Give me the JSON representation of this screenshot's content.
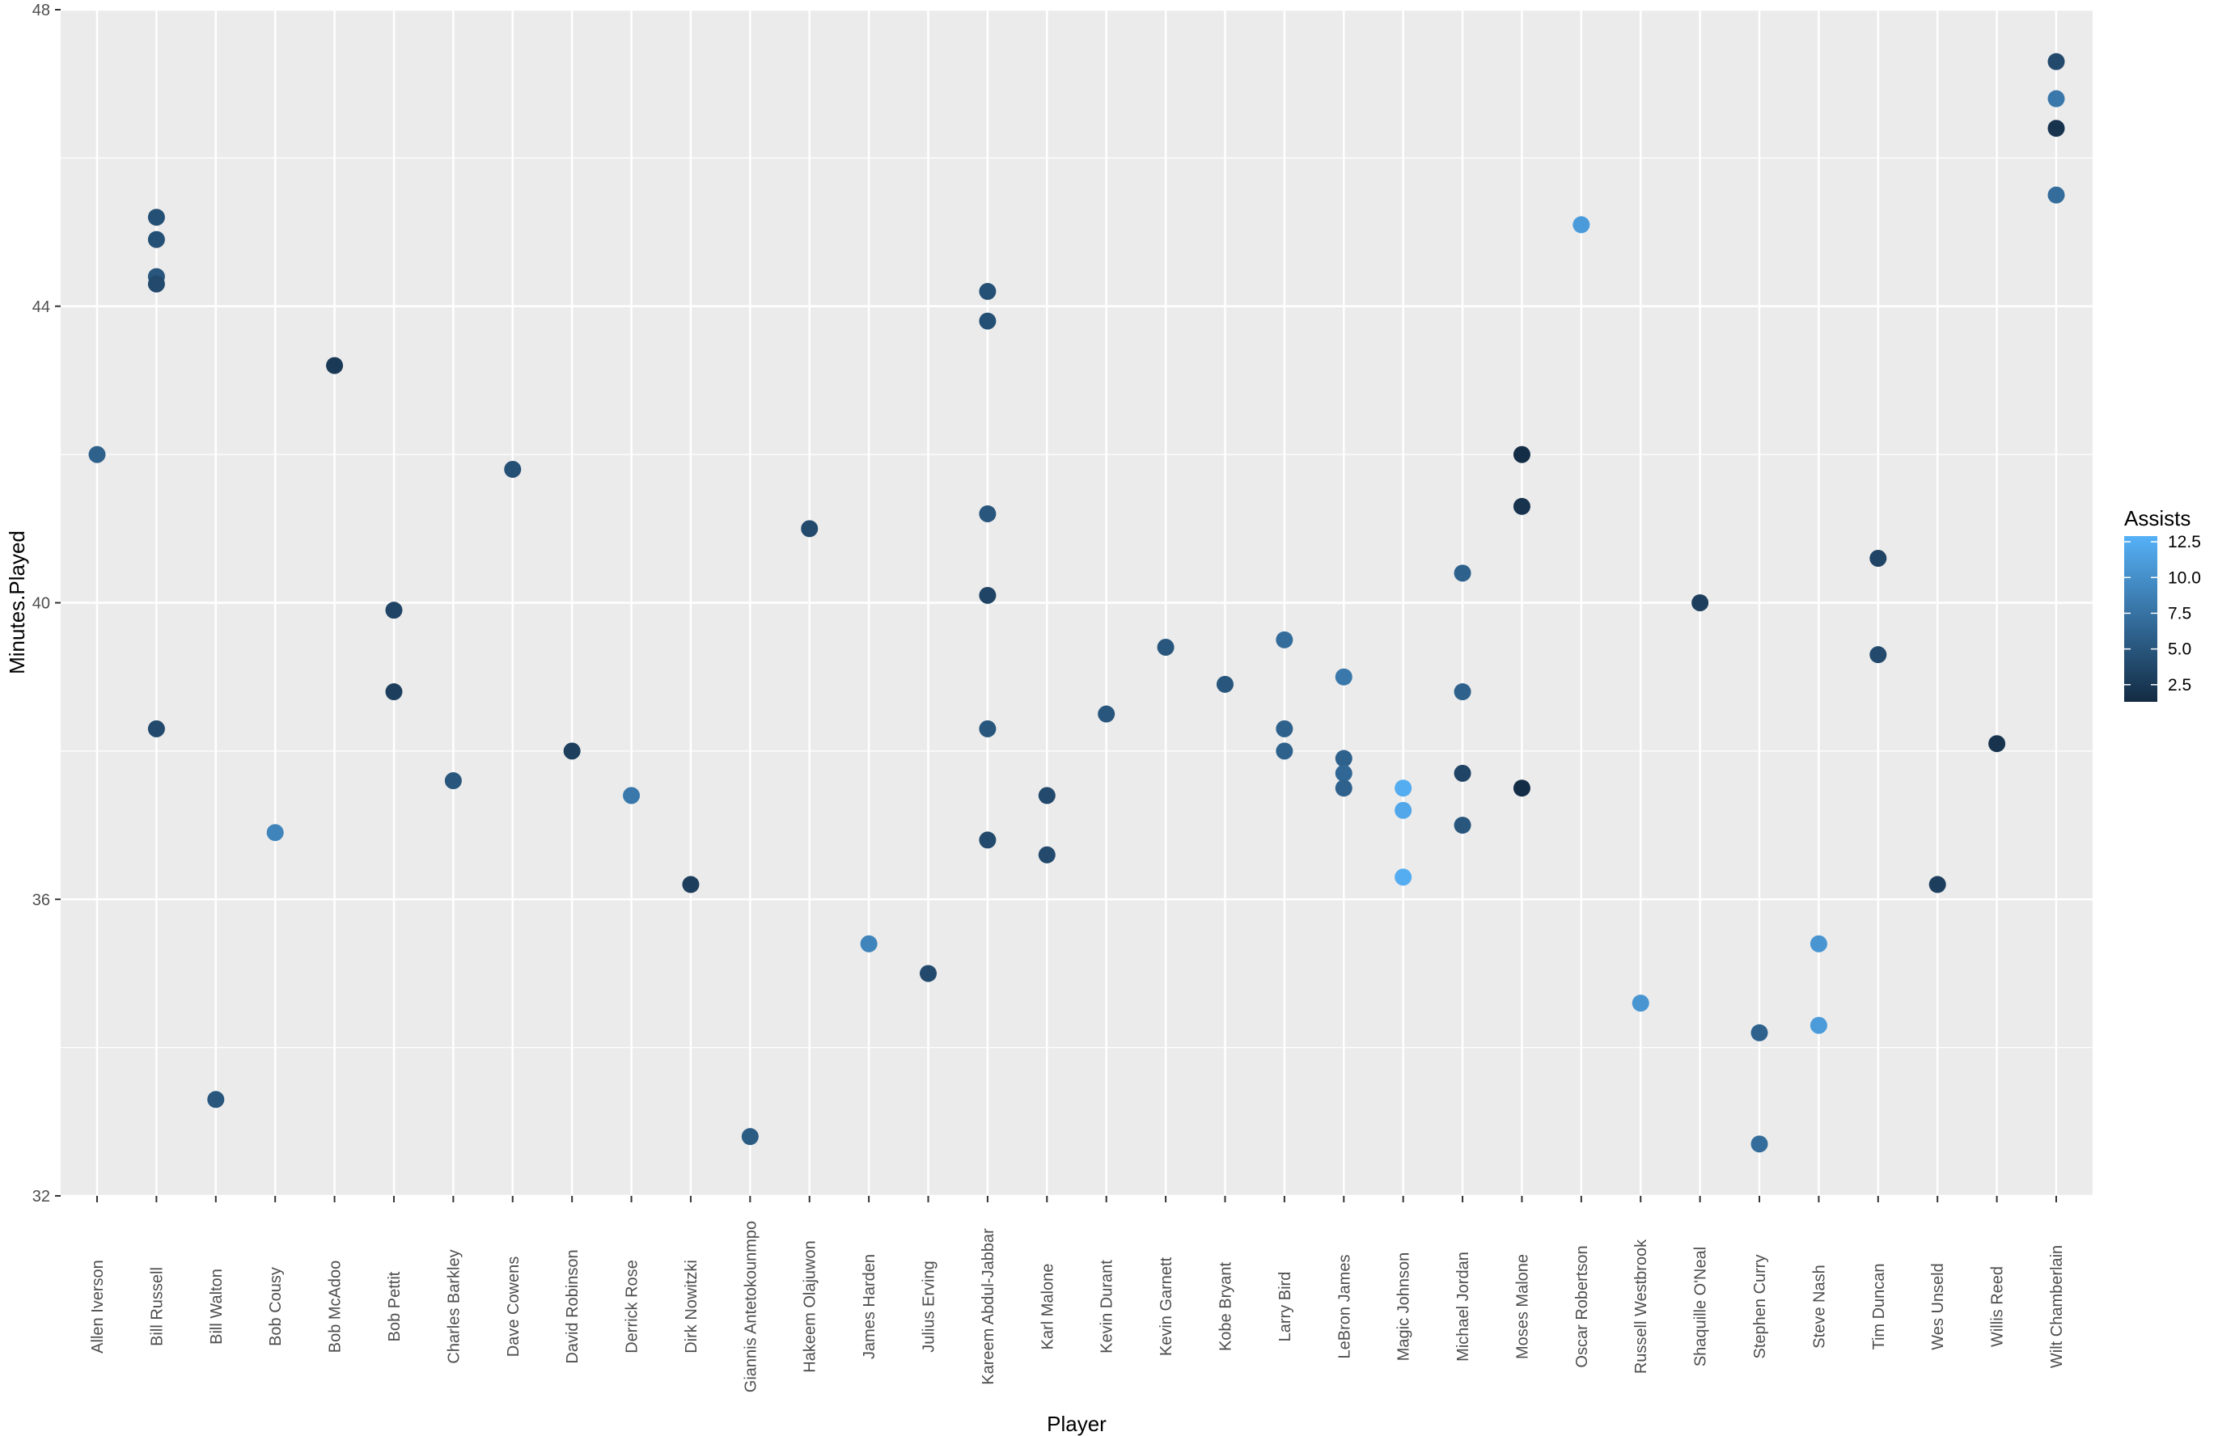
{
  "chart_data": {
    "type": "scatter",
    "title": "",
    "xlabel": "Player",
    "ylabel": "Minutes.Played",
    "ylim": [
      32,
      48
    ],
    "y_ticks": [
      32,
      36,
      40,
      44,
      48
    ],
    "y_tick_labels": [
      "32",
      "36",
      "40",
      "44",
      "48"
    ],
    "grid": true,
    "legend": {
      "title": "Assists",
      "position": "right",
      "ticks": [
        2.5,
        5.0,
        7.5,
        10.0,
        12.5
      ],
      "tick_labels": [
        "2.5",
        "5.0",
        "7.5",
        "10.0",
        "12.5"
      ],
      "range": [
        1.3,
        12.9
      ],
      "low_color": "#132B43",
      "high_color": "#56B1F7"
    },
    "categories": [
      "Allen Iverson",
      "Bill Russell",
      "Bill Walton",
      "Bob Cousy",
      "Bob McAdoo",
      "Bob Pettit",
      "Charles Barkley",
      "Dave Cowens",
      "David Robinson",
      "Derrick Rose",
      "Dirk Nowitzki",
      "Giannis Antetokounmpo",
      "Hakeem Olajuwon",
      "James Harden",
      "Julius Erving",
      "Kareem Abdul-Jabbar",
      "Karl Malone",
      "Kevin Durant",
      "Kevin Garnett",
      "Kobe Bryant",
      "Larry Bird",
      "LeBron James",
      "Magic Johnson",
      "Michael Jordan",
      "Moses Malone",
      "Oscar Robertson",
      "Russell Westbrook",
      "Shaquille O'Neal",
      "Stephen Curry",
      "Steve Nash",
      "Tim Duncan",
      "Wes Unseld",
      "Willis Reed",
      "Wilt Chamberlain"
    ],
    "points": [
      {
        "player": "Allen Iverson",
        "minutes": 42.0,
        "assists": 6.0
      },
      {
        "player": "Bill Russell",
        "minutes": 45.2,
        "assists": 4.5
      },
      {
        "player": "Bill Russell",
        "minutes": 44.9,
        "assists": 4.5
      },
      {
        "player": "Bill Russell",
        "minutes": 44.4,
        "assists": 5.0
      },
      {
        "player": "Bill Russell",
        "minutes": 44.3,
        "assists": 4.0
      },
      {
        "player": "Bill Russell",
        "minutes": 38.3,
        "assists": 4.0
      },
      {
        "player": "Bill Walton",
        "minutes": 33.3,
        "assists": 5.0
      },
      {
        "player": "Bob Cousy",
        "minutes": 36.9,
        "assists": 9.0
      },
      {
        "player": "Bob McAdoo",
        "minutes": 43.2,
        "assists": 2.5
      },
      {
        "player": "Bob Pettit",
        "minutes": 39.9,
        "assists": 3.5
      },
      {
        "player": "Bob Pettit",
        "minutes": 38.8,
        "assists": 3.0
      },
      {
        "player": "Charles Barkley",
        "minutes": 37.6,
        "assists": 5.0
      },
      {
        "player": "Dave Cowens",
        "minutes": 41.8,
        "assists": 4.5
      },
      {
        "player": "David Robinson",
        "minutes": 38.0,
        "assists": 3.0
      },
      {
        "player": "Derrick Rose",
        "minutes": 37.4,
        "assists": 8.0
      },
      {
        "player": "Dirk Nowitzki",
        "minutes": 36.2,
        "assists": 3.0
      },
      {
        "player": "Giannis Antetokounmpo",
        "minutes": 32.8,
        "assists": 5.5
      },
      {
        "player": "Hakeem Olajuwon",
        "minutes": 41.0,
        "assists": 4.0
      },
      {
        "player": "James Harden",
        "minutes": 35.4,
        "assists": 9.0
      },
      {
        "player": "Julius Erving",
        "minutes": 35.0,
        "assists": 4.0
      },
      {
        "player": "Kareem Abdul-Jabbar",
        "minutes": 44.2,
        "assists": 4.5
      },
      {
        "player": "Kareem Abdul-Jabbar",
        "minutes": 43.8,
        "assists": 4.5
      },
      {
        "player": "Kareem Abdul-Jabbar",
        "minutes": 41.2,
        "assists": 5.0
      },
      {
        "player": "Kareem Abdul-Jabbar",
        "minutes": 40.1,
        "assists": 3.5
      },
      {
        "player": "Kareem Abdul-Jabbar",
        "minutes": 38.3,
        "assists": 5.0
      },
      {
        "player": "Kareem Abdul-Jabbar",
        "minutes": 36.8,
        "assists": 4.0
      },
      {
        "player": "Karl Malone",
        "minutes": 37.4,
        "assists": 4.0
      },
      {
        "player": "Karl Malone",
        "minutes": 36.6,
        "assists": 4.0
      },
      {
        "player": "Kevin Durant",
        "minutes": 38.5,
        "assists": 5.0
      },
      {
        "player": "Kevin Garnett",
        "minutes": 39.4,
        "assists": 5.0
      },
      {
        "player": "Kobe Bryant",
        "minutes": 38.9,
        "assists": 5.0
      },
      {
        "player": "Larry Bird",
        "minutes": 39.5,
        "assists": 7.0
      },
      {
        "player": "Larry Bird",
        "minutes": 38.3,
        "assists": 6.0
      },
      {
        "player": "Larry Bird",
        "minutes": 38.0,
        "assists": 6.0
      },
      {
        "player": "LeBron James",
        "minutes": 39.0,
        "assists": 8.0
      },
      {
        "player": "LeBron James",
        "minutes": 37.9,
        "assists": 6.0
      },
      {
        "player": "LeBron James",
        "minutes": 37.7,
        "assists": 6.5
      },
      {
        "player": "LeBron James",
        "minutes": 37.5,
        "assists": 6.0
      },
      {
        "player": "Magic Johnson",
        "minutes": 37.5,
        "assists": 12.5
      },
      {
        "player": "Magic Johnson",
        "minutes": 37.2,
        "assists": 12.0
      },
      {
        "player": "Magic Johnson",
        "minutes": 36.3,
        "assists": 12.5
      },
      {
        "player": "Michael Jordan",
        "minutes": 40.4,
        "assists": 6.0
      },
      {
        "player": "Michael Jordan",
        "minutes": 38.8,
        "assists": 6.0
      },
      {
        "player": "Michael Jordan",
        "minutes": 37.7,
        "assists": 3.5
      },
      {
        "player": "Michael Jordan",
        "minutes": 37.0,
        "assists": 5.0
      },
      {
        "player": "Moses Malone",
        "minutes": 42.0,
        "assists": 1.5
      },
      {
        "player": "Moses Malone",
        "minutes": 41.3,
        "assists": 2.0
      },
      {
        "player": "Moses Malone",
        "minutes": 37.5,
        "assists": 1.5
      },
      {
        "player": "Oscar Robertson",
        "minutes": 45.1,
        "assists": 11.0
      },
      {
        "player": "Russell Westbrook",
        "minutes": 34.6,
        "assists": 10.5
      },
      {
        "player": "Shaquille O'Neal",
        "minutes": 40.0,
        "assists": 3.0
      },
      {
        "player": "Stephen Curry",
        "minutes": 34.2,
        "assists": 6.0
      },
      {
        "player": "Stephen Curry",
        "minutes": 32.7,
        "assists": 7.0
      },
      {
        "player": "Steve Nash",
        "minutes": 35.4,
        "assists": 10.5
      },
      {
        "player": "Steve Nash",
        "minutes": 34.3,
        "assists": 11.0
      },
      {
        "player": "Tim Duncan",
        "minutes": 40.6,
        "assists": 3.5
      },
      {
        "player": "Tim Duncan",
        "minutes": 39.3,
        "assists": 4.0
      },
      {
        "player": "Wes Unseld",
        "minutes": 36.2,
        "assists": 3.0
      },
      {
        "player": "Willis Reed",
        "minutes": 38.1,
        "assists": 2.0
      },
      {
        "player": "Wilt Chamberlain",
        "minutes": 47.3,
        "assists": 4.0
      },
      {
        "player": "Wilt Chamberlain",
        "minutes": 46.8,
        "assists": 8.0
      },
      {
        "player": "Wilt Chamberlain",
        "minutes": 46.4,
        "assists": 2.0
      },
      {
        "player": "Wilt Chamberlain",
        "minutes": 45.5,
        "assists": 7.0
      }
    ]
  }
}
